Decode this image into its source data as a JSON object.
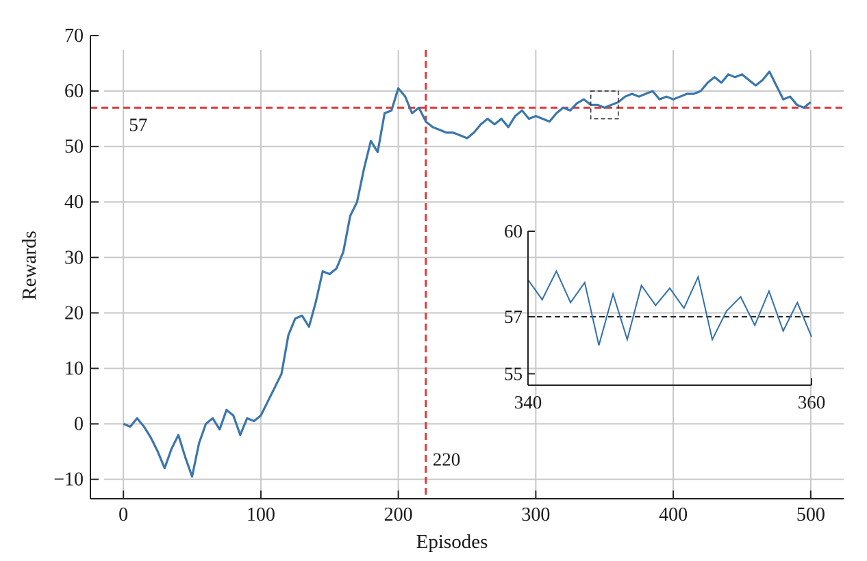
{
  "chart_data": [
    {
      "type": "line",
      "xlabel": "Episodes",
      "ylabel": "Rewards",
      "xlim": [
        -24,
        524
      ],
      "ylim": [
        -13.5,
        70
      ],
      "xticks": [
        0,
        100,
        200,
        300,
        400,
        500
      ],
      "yticks": [
        -10,
        0,
        10,
        20,
        30,
        40,
        50,
        60,
        70
      ],
      "xtick_labels": [
        "0",
        "100",
        "200",
        "300",
        "400",
        "500"
      ],
      "ytick_labels": [
        "−10",
        "0",
        "10",
        "20",
        "30",
        "40",
        "50",
        "60",
        "70"
      ],
      "grid": true,
      "series": [
        {
          "color": "#3a76ad",
          "x": [
            0,
            5,
            10,
            15,
            20,
            25,
            30,
            35,
            40,
            45,
            50,
            55,
            60,
            65,
            70,
            75,
            80,
            85,
            90,
            95,
            100,
            105,
            110,
            115,
            120,
            125,
            130,
            135,
            140,
            145,
            150,
            155,
            160,
            165,
            170,
            175,
            180,
            185,
            190,
            195,
            200,
            205,
            210,
            215,
            220,
            225,
            230,
            235,
            240,
            245,
            250,
            255,
            260,
            265,
            270,
            275,
            280,
            285,
            290,
            295,
            300,
            305,
            310,
            315,
            320,
            325,
            330,
            335,
            340,
            345,
            350,
            355,
            360,
            365,
            370,
            375,
            380,
            385,
            390,
            395,
            400,
            405,
            410,
            415,
            420,
            425,
            430,
            435,
            440,
            445,
            450,
            455,
            460,
            465,
            470,
            475,
            480,
            485,
            490,
            495,
            500
          ],
          "y": [
            0,
            -0.5,
            1,
            -0.5,
            -2.5,
            -5,
            -8,
            -4.5,
            -2,
            -6,
            -9.5,
            -3.5,
            0,
            1,
            -1,
            2.5,
            1.5,
            -2,
            1,
            0.5,
            1.5,
            4,
            6.5,
            9,
            16,
            19,
            19.5,
            17.5,
            22,
            27.5,
            27,
            28,
            31,
            37.5,
            40,
            46,
            51,
            49,
            56,
            56.5,
            60.5,
            59,
            56,
            57,
            54.5,
            53.5,
            53,
            52.5,
            52.5,
            52,
            51.5,
            52.5,
            54,
            55,
            54,
            55,
            53.5,
            55.5,
            56.5,
            55,
            55.5,
            55,
            54.5,
            56,
            57,
            56.5,
            57.8,
            58.5,
            57.5,
            57.5,
            57,
            57.5,
            58,
            59,
            59.5,
            59,
            59.5,
            60,
            58.5,
            59,
            58.5,
            59,
            59.5,
            59.5,
            60,
            61.5,
            62.5,
            61.5,
            63,
            62.5,
            63,
            62,
            61,
            62,
            63.5,
            61,
            58.5,
            59,
            57.5,
            57,
            58
          ]
        }
      ],
      "reference_lines": [
        {
          "orientation": "horizontal",
          "value": 57,
          "label": "57",
          "color": "#e03a3a",
          "style": "dashed"
        },
        {
          "orientation": "vertical",
          "value": 220,
          "label": "220",
          "color": "#e03a3a",
          "style": "dashed"
        }
      ],
      "highlight_box": {
        "x": [
          340,
          360
        ],
        "y": [
          55,
          60
        ],
        "color": "#333333",
        "style": "dashed"
      }
    },
    {
      "type": "line",
      "role": "inset",
      "xlim": [
        340,
        360
      ],
      "ylim": [
        54.6,
        60
      ],
      "xticks": [
        340,
        360
      ],
      "yticks": [
        55,
        57,
        60
      ],
      "xtick_labels": [
        "340",
        "360"
      ],
      "ytick_labels": [
        "55",
        "57",
        "60"
      ],
      "grid": false,
      "series": [
        {
          "color": "#2f6fad",
          "x": [
            340,
            341,
            342,
            343,
            344,
            345,
            346,
            347,
            348,
            349,
            350,
            351,
            352,
            353,
            354,
            355,
            356,
            357,
            358,
            359,
            360
          ],
          "y": [
            58.3,
            57.6,
            58.6,
            57.5,
            58.2,
            56.0,
            57.8,
            56.2,
            58.1,
            57.4,
            58.0,
            57.3,
            58.4,
            56.2,
            57.2,
            57.7,
            56.7,
            57.9,
            56.5,
            57.5,
            56.3
          ]
        }
      ],
      "reference_lines": [
        {
          "orientation": "horizontal",
          "value": 57,
          "color": "#222222",
          "style": "dashed"
        }
      ]
    }
  ]
}
